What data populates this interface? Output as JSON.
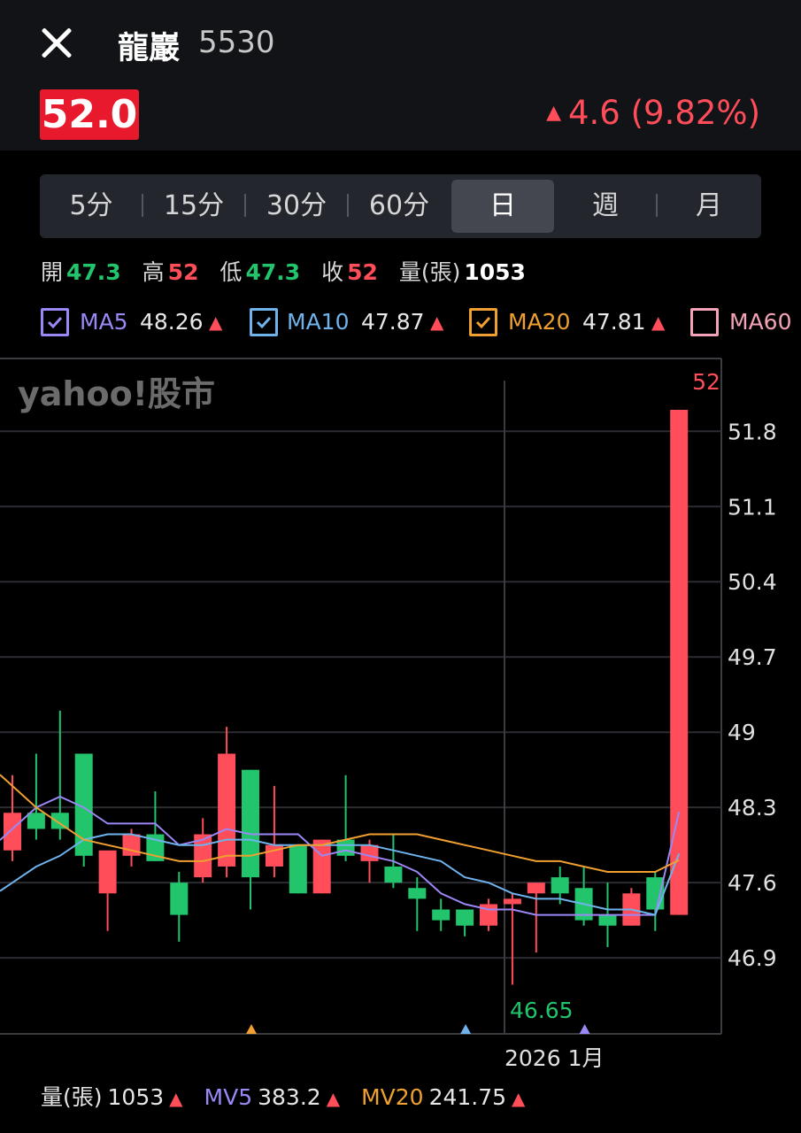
{
  "header": {
    "stock_name": "龍巖",
    "stock_code": "5530",
    "price": "52.0",
    "change_arrow": "▲",
    "change": "4.6 (9.82%)"
  },
  "periods": [
    "5分",
    "15分",
    "30分",
    "60分",
    "日",
    "週",
    "月"
  ],
  "active_period": "日",
  "ohlc": {
    "open_label": "開",
    "open": "47.3",
    "high_label": "高",
    "high": "52",
    "low_label": "低",
    "low": "47.3",
    "close_label": "收",
    "close": "52",
    "volume_label": "量(張)",
    "volume": "1053"
  },
  "ma_legend": [
    {
      "label": "MA5",
      "value": "48.26",
      "arrow": "▲",
      "checked": true,
      "color": "#9b87f5"
    },
    {
      "label": "MA10",
      "value": "47.87",
      "arrow": "▲",
      "checked": true,
      "color": "#6fb3ec"
    },
    {
      "label": "MA20",
      "value": "47.81",
      "arrow": "▲",
      "checked": true,
      "color": "#f0a030"
    },
    {
      "label": "MA60",
      "value": "",
      "arrow": "",
      "checked": false,
      "color": "#f4a2b6"
    }
  ],
  "watermark": "yahoo!股市",
  "bottom_legend": {
    "vol_label": "量(張)",
    "vol": "1053",
    "vol_arrow": "▲",
    "mv5_label": "MV5",
    "mv5": "383.2",
    "mv5_arrow": "▲",
    "mv20_label": "MV20",
    "mv20": "241.75",
    "mv20_arrow": "▲",
    "colors": {
      "vol": "#e6e6e6",
      "mv5": "#9b87f5",
      "mv20": "#f0a030"
    }
  },
  "chart_data": {
    "type": "candlestick",
    "y_axis_ticks": [
      51.8,
      51.1,
      50.4,
      49.7,
      49,
      48.3,
      47.6,
      46.9
    ],
    "y_tick_labels": [
      "51.8",
      "51.1",
      "50.4",
      "49.7",
      "49",
      "48.3",
      "47.6",
      "46.9"
    ],
    "ylim": [
      46.1,
      52.4
    ],
    "x_label": "2026 1月",
    "max_label": "52",
    "min_label": "46.65",
    "candles": [
      {
        "o": 47.9,
        "h": 48.6,
        "l": 47.8,
        "c": 48.25
      },
      {
        "o": 48.25,
        "h": 48.8,
        "l": 48.0,
        "c": 48.1
      },
      {
        "o": 48.25,
        "h": 49.2,
        "l": 48.0,
        "c": 48.1
      },
      {
        "o": 48.8,
        "h": 48.8,
        "l": 47.75,
        "c": 47.85
      },
      {
        "o": 47.5,
        "h": 47.85,
        "l": 47.15,
        "c": 47.9
      },
      {
        "o": 47.85,
        "h": 48.1,
        "l": 47.75,
        "c": 48.05
      },
      {
        "o": 48.05,
        "h": 48.45,
        "l": 47.8,
        "c": 47.8
      },
      {
        "o": 47.6,
        "h": 47.7,
        "l": 47.05,
        "c": 47.3
      },
      {
        "o": 47.65,
        "h": 48.2,
        "l": 47.6,
        "c": 48.05
      },
      {
        "o": 47.75,
        "h": 49.05,
        "l": 47.65,
        "c": 48.8
      },
      {
        "o": 48.65,
        "h": 48.65,
        "l": 47.35,
        "c": 47.65
      },
      {
        "o": 47.75,
        "h": 48.5,
        "l": 47.65,
        "c": 47.95
      },
      {
        "o": 47.95,
        "h": 47.95,
        "l": 47.5,
        "c": 47.5
      },
      {
        "o": 47.5,
        "h": 48.0,
        "l": 47.5,
        "c": 48.0
      },
      {
        "o": 48.0,
        "h": 48.6,
        "l": 47.8,
        "c": 47.85
      },
      {
        "o": 47.8,
        "h": 48.0,
        "l": 47.6,
        "c": 47.95
      },
      {
        "o": 47.75,
        "h": 48.05,
        "l": 47.55,
        "c": 47.6
      },
      {
        "o": 47.55,
        "h": 47.65,
        "l": 47.15,
        "c": 47.45
      },
      {
        "o": 47.35,
        "h": 47.45,
        "l": 47.15,
        "c": 47.25
      },
      {
        "o": 47.35,
        "h": 47.35,
        "l": 47.1,
        "c": 47.2
      },
      {
        "o": 47.2,
        "h": 47.45,
        "l": 47.15,
        "c": 47.4
      },
      {
        "o": 47.4,
        "h": 47.5,
        "l": 46.65,
        "c": 47.45
      },
      {
        "o": 47.5,
        "h": 47.6,
        "l": 46.95,
        "c": 47.6
      },
      {
        "o": 47.65,
        "h": 47.75,
        "l": 47.4,
        "c": 47.5
      },
      {
        "o": 47.55,
        "h": 47.75,
        "l": 47.2,
        "c": 47.25
      },
      {
        "o": 47.3,
        "h": 47.6,
        "l": 47.0,
        "c": 47.2
      },
      {
        "o": 47.2,
        "h": 47.55,
        "l": 47.2,
        "c": 47.5
      },
      {
        "o": 47.65,
        "h": 47.7,
        "l": 47.15,
        "c": 47.35
      },
      {
        "o": 47.3,
        "h": 52.0,
        "l": 47.3,
        "c": 52.0
      }
    ],
    "ma5": [
      48.1,
      48.3,
      48.4,
      48.3,
      48.15,
      48.15,
      48.15,
      47.95,
      48.0,
      48.1,
      48.05,
      48.05,
      48.05,
      47.85,
      47.9,
      47.85,
      47.8,
      47.7,
      47.5,
      47.4,
      47.35,
      47.35,
      47.3,
      47.3,
      47.3,
      47.3,
      47.3,
      47.3,
      48.26
    ],
    "ma10": [
      47.6,
      47.75,
      47.85,
      48.0,
      48.05,
      48.05,
      48.0,
      47.95,
      47.95,
      48.0,
      48.0,
      47.95,
      47.95,
      47.95,
      47.95,
      47.95,
      47.9,
      47.85,
      47.8,
      47.65,
      47.6,
      47.5,
      47.45,
      47.45,
      47.4,
      47.35,
      47.35,
      47.3,
      47.87
    ],
    "ma20": [
      48.5,
      48.3,
      48.15,
      48.0,
      47.95,
      47.9,
      47.85,
      47.8,
      47.8,
      47.85,
      47.85,
      47.9,
      47.95,
      47.95,
      48.0,
      48.05,
      48.05,
      48.05,
      48.0,
      47.95,
      47.9,
      47.85,
      47.8,
      47.8,
      47.75,
      47.7,
      47.7,
      47.7,
      47.81
    ],
    "markers": [
      {
        "index": 10,
        "color": "#f0a030"
      },
      {
        "index": 19,
        "color": "#6fb3ec"
      },
      {
        "index": 24,
        "color": "#9b87f5"
      }
    ],
    "colors": {
      "up": "#ff4d5a",
      "down": "#22c56b",
      "grid": "#2b2d33"
    }
  }
}
